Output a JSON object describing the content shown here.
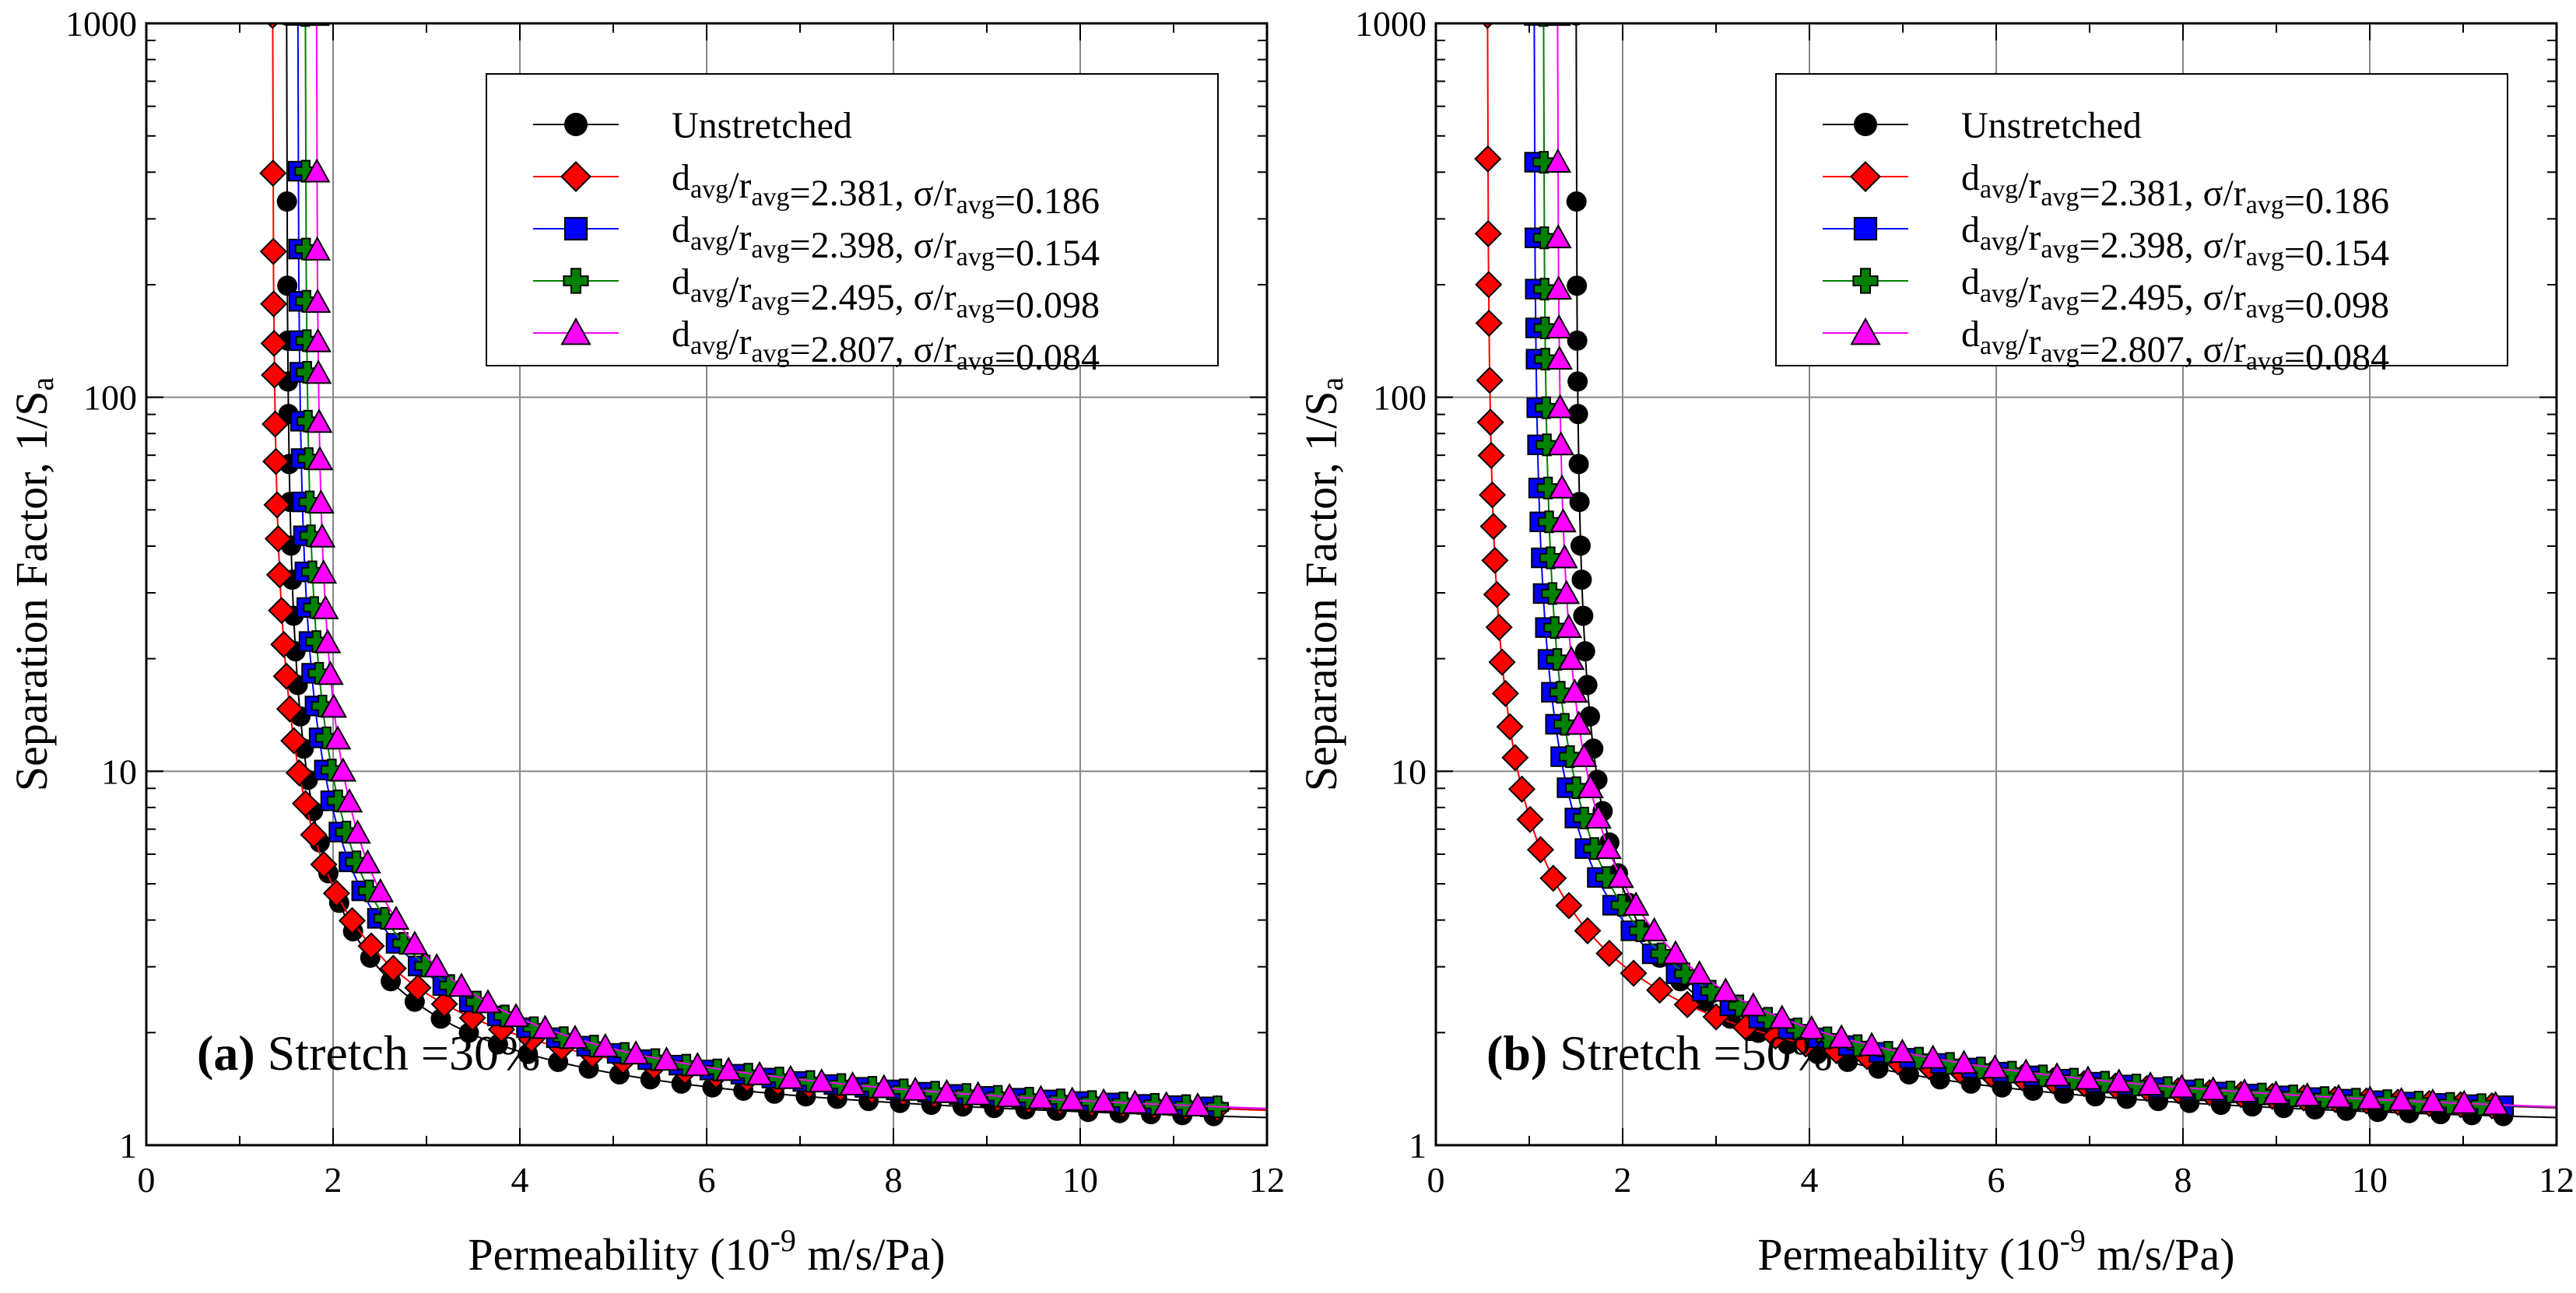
{
  "chart_data": [
    {
      "type": "line",
      "panel_label": "(a)",
      "panel_text": "Stretch =30%",
      "xlabel": "Permeability (10",
      "xlabel_exp": "-9",
      "xlabel_unit": " m/s/Pa)",
      "ylabel": "Separation Factor, 1/S",
      "ylabel_sub": "a",
      "xlim": [
        0,
        12
      ],
      "ylim": [
        1,
        1000
      ],
      "yscale": "log",
      "xticks": [
        "0",
        "2",
        "4",
        "6",
        "8",
        "10",
        "12"
      ],
      "yticks": [
        "1",
        "10",
        "100",
        "1000"
      ],
      "grid": true,
      "legend_position": "top-right",
      "series": [
        {
          "name": "Unstretched",
          "marker": "circle",
          "color": "#000000",
          "x0": 1.5,
          "A": 1.95
        },
        {
          "name": "d_avg/r_avg=2.381, σ/r_avg=0.186",
          "marker": "diamond",
          "color": "#ff0000",
          "x0": 1.35,
          "A": 2.55
        },
        {
          "name": "d_avg/r_avg=2.398, σ/r_avg=0.154",
          "marker": "square",
          "color": "#0000ff",
          "x0": 1.62,
          "A": 2.6
        },
        {
          "name": "d_avg/r_avg=2.495, σ/r_avg=0.098",
          "marker": "plus",
          "color": "#008000",
          "x0": 1.7,
          "A": 2.6
        },
        {
          "name": "d_avg/r_avg=2.807, σ/r_avg=0.084",
          "marker": "triangle",
          "color": "#ff00ff",
          "x0": 1.82,
          "A": 2.58
        }
      ]
    },
    {
      "type": "line",
      "panel_label": "(b)",
      "panel_text": "Stretch =50%",
      "xlabel": "Permeability (10",
      "xlabel_exp": "-9",
      "xlabel_unit": " m/s/Pa)",
      "ylabel": "Separation Factor, 1/S",
      "ylabel_sub": "a",
      "xlim": [
        0,
        12
      ],
      "ylim": [
        1,
        1000
      ],
      "yscale": "log",
      "xticks": [
        "0",
        "2",
        "4",
        "6",
        "8",
        "10",
        "12"
      ],
      "yticks": [
        "1",
        "10",
        "100",
        "1000"
      ],
      "grid": true,
      "legend_position": "top-right",
      "series": [
        {
          "name": "Unstretched",
          "marker": "circle",
          "color": "#000000",
          "x0": 1.5,
          "A": 1.95
        },
        {
          "name": "d_avg/r_avg=2.381, σ/r_avg=0.186",
          "marker": "diamond",
          "color": "#ff0000",
          "x0": 0.55,
          "A": 2.95
        },
        {
          "name": "d_avg/r_avg=2.398, σ/r_avg=0.154",
          "marker": "square",
          "color": "#0000ff",
          "x0": 1.05,
          "A": 2.85
        },
        {
          "name": "d_avg/r_avg=2.495, σ/r_avg=0.098",
          "marker": "plus",
          "color": "#008000",
          "x0": 1.15,
          "A": 2.85
        },
        {
          "name": "d_avg/r_avg=2.807, σ/r_avg=0.084",
          "marker": "triangle",
          "color": "#ff00ff",
          "x0": 1.3,
          "A": 2.85
        }
      ]
    }
  ]
}
